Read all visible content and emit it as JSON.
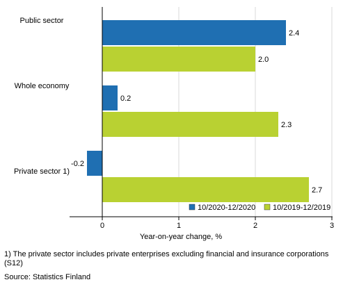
{
  "chart_data": {
    "type": "bar",
    "orientation": "horizontal",
    "categories": [
      "Public sector",
      "Whole economy",
      "Private sector 1)"
    ],
    "series": [
      {
        "name": "10/2020-12/2020",
        "color": "#1f6fb2",
        "values": [
          2.4,
          0.2,
          -0.2
        ]
      },
      {
        "name": "10/2019-12/2019",
        "color": "#b9d132",
        "values": [
          2.0,
          2.3,
          2.7
        ]
      }
    ],
    "xlabel": "Year-on-year change, %",
    "ylabel": "",
    "xlim": [
      -0.4,
      3
    ],
    "xticks": [
      0,
      1,
      2,
      3
    ],
    "grid": true,
    "legend_position": "bottom-right"
  },
  "footnotes": {
    "note": "1) The private sector includes private enterprises excluding financial and insurance corporations (S12)",
    "source": "Source: Statistics Finland"
  }
}
